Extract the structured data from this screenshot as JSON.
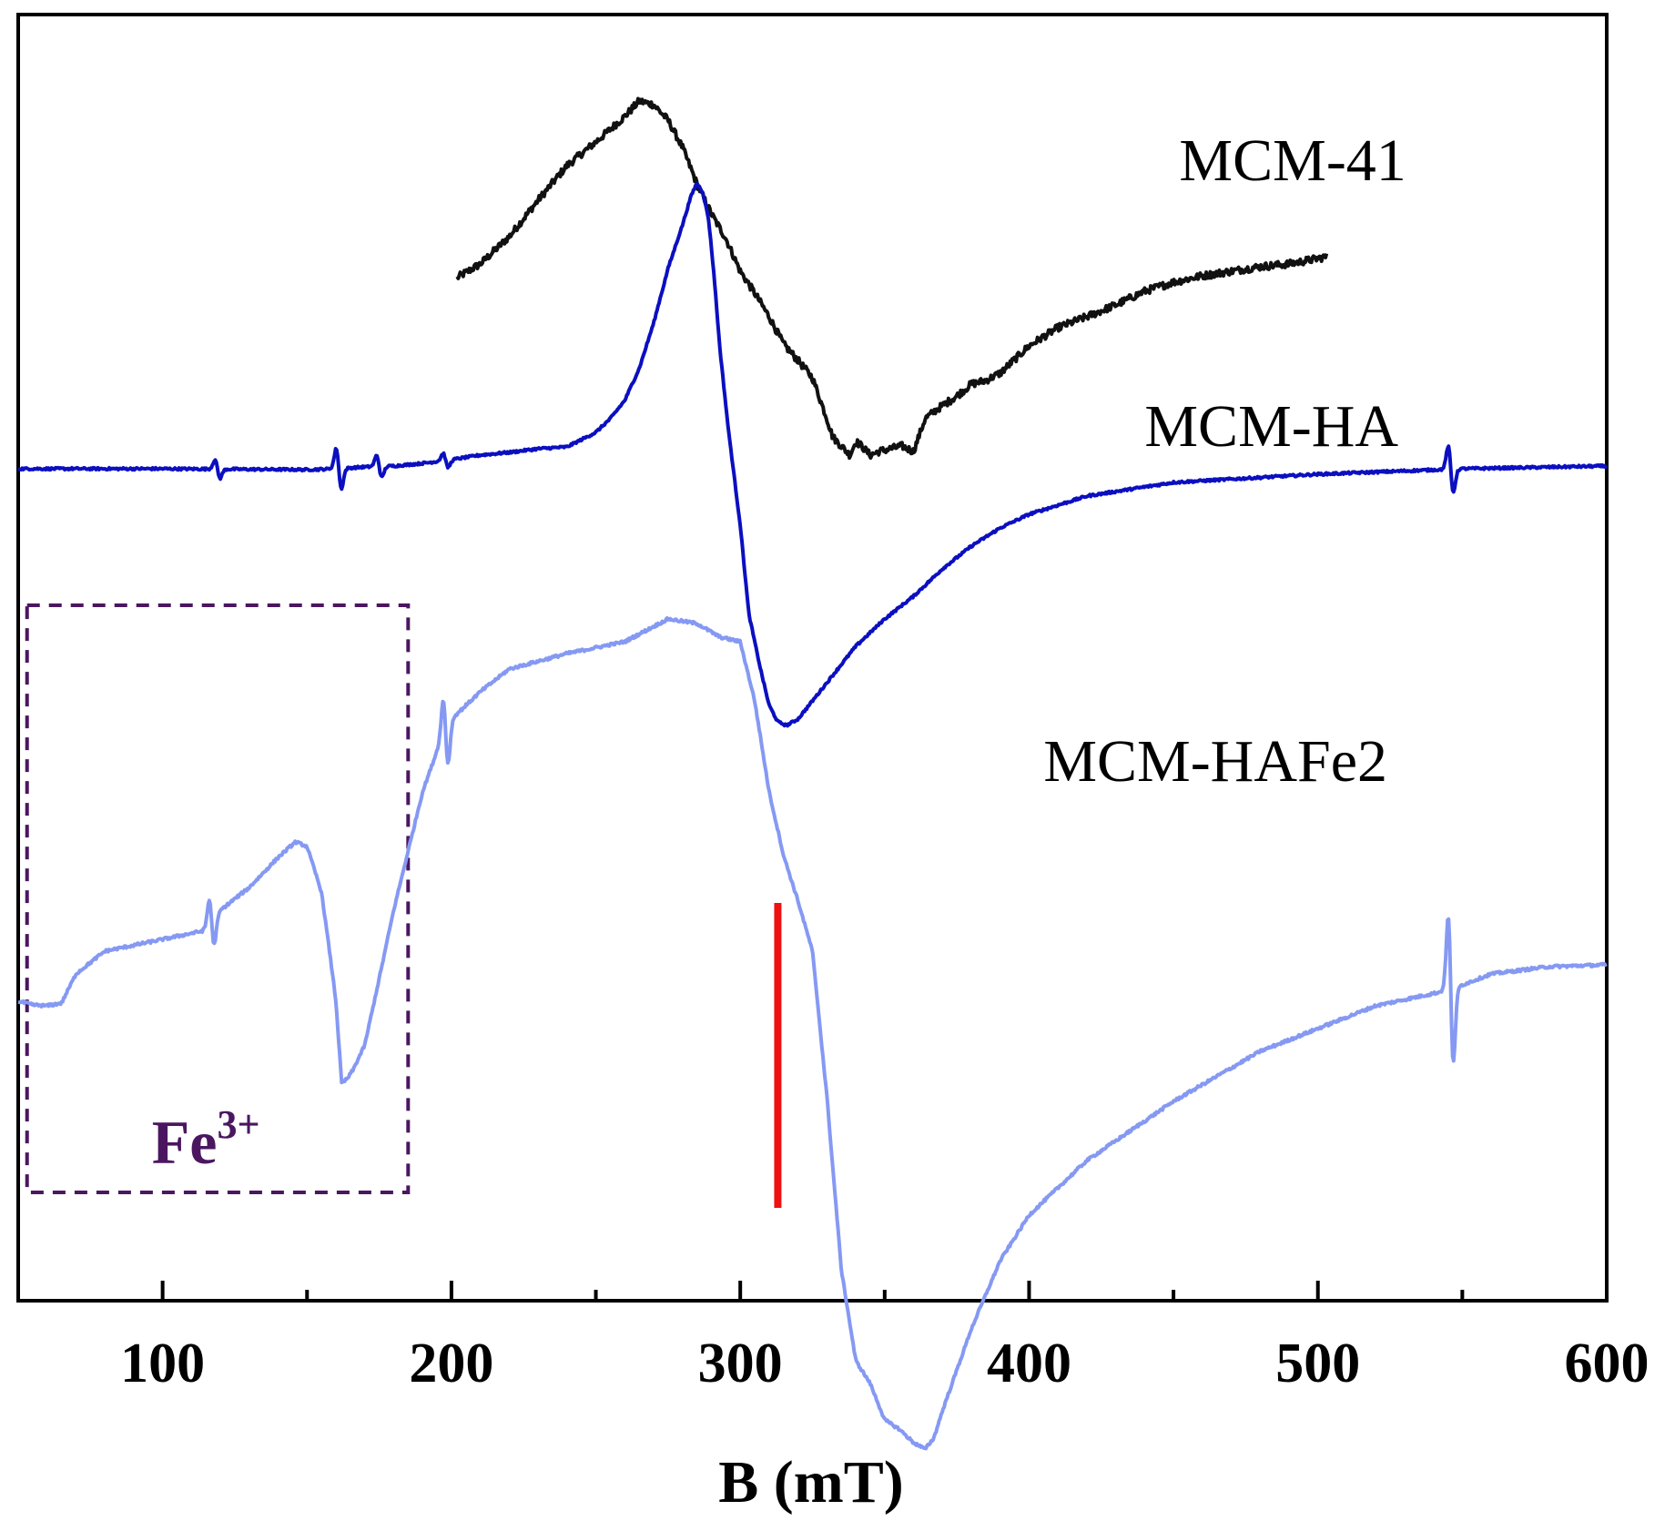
{
  "chart_data": {
    "type": "line",
    "title": "",
    "xlabel": "B (mT)",
    "ylabel": "",
    "xlim": [
      50,
      600
    ],
    "x_major_ticks": [
      100,
      200,
      300,
      400,
      500,
      600
    ],
    "x_minor_ticks": [
      150,
      250,
      350,
      450,
      550
    ],
    "y_units": "arbitrary (vertically offset EPR spectra)",
    "marker_line_B": 313,
    "annotation": {
      "text": "Fe",
      "superscript": "3+",
      "x_range": [
        60,
        185
      ],
      "color": "#4b1660"
    },
    "colors": {
      "marker": "#ee1111",
      "box": "#4b1660",
      "axis": "#000000"
    },
    "series": [
      {
        "name": "MCM-41",
        "color": "#111111",
        "noise": 4,
        "x": [
          202,
          210,
          220,
          230,
          240,
          250,
          255,
          260,
          265,
          270,
          275,
          280,
          285,
          290,
          295,
          300,
          305,
          310,
          315,
          320,
          325,
          330,
          332,
          335,
          338,
          340,
          342,
          345,
          348,
          352,
          356,
          360,
          364,
          368,
          375,
          380,
          385,
          390,
          395,
          400,
          410,
          420,
          430,
          440,
          450,
          460,
          470,
          480,
          490,
          500,
          503
        ],
        "y": [
          -95,
          -80,
          -50,
          -10,
          28,
          54,
          68,
          82,
          99,
          95,
          78,
          48,
          8,
          -25,
          -52,
          -88,
          -112,
          -138,
          -168,
          -186,
          -205,
          -250,
          -270,
          -280,
          -290,
          -275,
          -280,
          -290,
          -286,
          -283,
          -280,
          -286,
          -250,
          -240,
          -225,
          -212,
          -208,
          -200,
          -185,
          -170,
          -150,
          -138,
          -125,
          -110,
          -100,
          -93,
          -88,
          -83,
          -80,
          -74,
          -72
        ]
      },
      {
        "name": "MCM-HA",
        "color": "#0b0fc0",
        "noise": 1.2,
        "x": [
          50,
          80,
          100,
          150,
          160,
          170,
          180,
          190,
          200,
          210,
          220,
          230,
          240,
          250,
          255,
          260,
          265,
          270,
          275,
          280,
          283,
          285,
          287,
          289,
          291,
          293,
          296,
          300,
          303,
          307,
          310,
          313,
          316,
          320,
          325,
          330,
          335,
          340,
          350,
          360,
          370,
          380,
          390,
          400,
          420,
          450,
          500,
          550,
          600
        ],
        "y": [
          0,
          0,
          0,
          -1,
          0,
          2,
          3,
          6,
          10,
          15,
          18,
          22,
          24,
          40,
          55,
          75,
          110,
          160,
          220,
          268,
          300,
          314,
          304,
          275,
          210,
          130,
          40,
          -62,
          -160,
          -220,
          -260,
          -278,
          -282,
          -275,
          -255,
          -235,
          -215,
          -195,
          -165,
          -140,
          -110,
          -85,
          -65,
          -50,
          -30,
          -15,
          -6,
          0,
          3
        ]
      },
      {
        "name": "MCM-HAFe2",
        "color": "#8599f3",
        "noise": 1.5,
        "x": [
          50,
          55,
          60,
          65,
          70,
          80,
          100,
          115,
          120,
          130,
          140,
          146,
          150,
          155,
          158,
          160,
          162,
          164,
          166,
          170,
          175,
          180,
          185,
          190,
          195,
          200,
          210,
          220,
          240,
          260,
          275,
          285,
          293,
          300,
          305,
          310,
          315,
          320,
          325,
          330,
          335,
          340,
          345,
          350,
          355,
          360,
          364,
          367,
          370,
          380,
          390,
          400,
          420,
          450,
          480,
          520,
          545,
          560,
          580,
          600
        ],
        "y": [
          -120,
          -124,
          -125,
          -122,
          -90,
          -65,
          -52,
          -42,
          -20,
          5,
          38,
          55,
          50,
          0,
          -70,
          -120,
          -210,
          -205,
          -195,
          -168,
          -95,
          -20,
          45,
          110,
          155,
          190,
          220,
          245,
          262,
          275,
          300,
          295,
          280,
          275,
          210,
          110,
          40,
          -10,
          -65,
          -225,
          -415,
          -515,
          -540,
          -580,
          -590,
          -605,
          -612,
          -600,
          -570,
          -480,
          -405,
          -355,
          -295,
          -230,
          -175,
          -125,
          -108,
          -90,
          -82,
          -80
        ]
      }
    ],
    "series_labels": [
      {
        "text": "MCM-41",
        "anchor_B": 452,
        "near_series": "MCM-41"
      },
      {
        "text": "MCM-HA",
        "anchor_B": 440,
        "near_series": "MCM-HA"
      },
      {
        "text": "MCM-HAFe2",
        "anchor_B": 405,
        "near_series": "MCM-HAFe2"
      }
    ],
    "spikes": [
      {
        "series": "MCM-HA",
        "B": 119,
        "amp": 10
      },
      {
        "series": "MCM-HA",
        "B": 161,
        "amp": 22
      },
      {
        "series": "MCM-HA",
        "B": 175,
        "amp": 12
      },
      {
        "series": "MCM-HA",
        "B": 198,
        "amp": 8
      },
      {
        "series": "MCM-HA",
        "B": 546,
        "amp": 25
      },
      {
        "series": "MCM-HAFe2",
        "B": 117,
        "amp": 28
      },
      {
        "series": "MCM-HAFe2",
        "B": 198,
        "amp": 40
      },
      {
        "series": "MCM-HAFe2",
        "B": 546,
        "amp": 80
      }
    ]
  }
}
